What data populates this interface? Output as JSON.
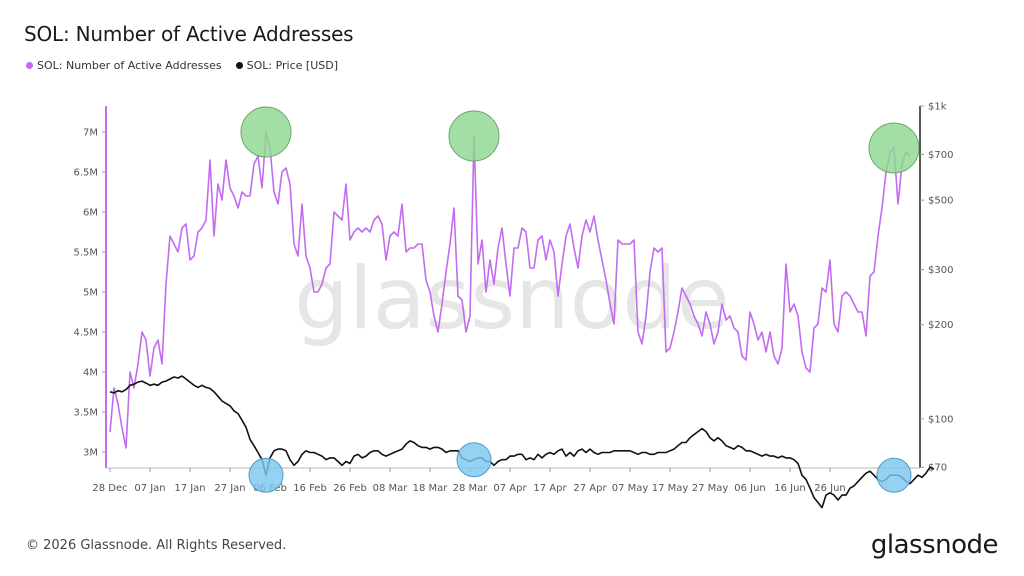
{
  "title": "SOL: Number of Active Addresses",
  "legend": [
    {
      "label": "SOL: Number of Active Addresses",
      "color": "#c26cf0"
    },
    {
      "label": "SOL: Price [USD]",
      "color": "#111111"
    }
  ],
  "watermark": "glassnode",
  "footer": "© 2026 Glassnode. All Rights Reserved.",
  "brand": "glassnode",
  "chart_data": {
    "type": "line",
    "title": "SOL: Number of Active Addresses",
    "x_start": "28 Dec",
    "x_ticks": [
      "28 Dec",
      "07 Jan",
      "17 Jan",
      "27 Jan",
      "06 Feb",
      "16 Feb",
      "26 Feb",
      "08 Mar",
      "18 Mar",
      "28 Mar",
      "07 Apr",
      "17 Apr",
      "27 Apr",
      "07 May",
      "17 May",
      "27 May",
      "06 Jun",
      "16 Jun",
      "26 Jun"
    ],
    "y_left": {
      "ticks": [
        "3M",
        "3.5M",
        "4M",
        "4.5M",
        "5M",
        "5.5M",
        "6M",
        "6.5M",
        "7M"
      ],
      "tick_values": [
        3,
        3.5,
        4,
        4.5,
        5,
        5.5,
        6,
        6.5,
        7
      ],
      "range": [
        2.92,
        7.45
      ],
      "unit": "M"
    },
    "y_right": {
      "scale": "log",
      "ticks": [
        "$70",
        "$100",
        "$200",
        "$300",
        "$500",
        "$700",
        "$1k"
      ],
      "tick_values": [
        70,
        100,
        200,
        300,
        500,
        700,
        1000
      ],
      "range": [
        55,
        1000
      ]
    },
    "grid": false,
    "legend_position": "top-left",
    "series": [
      {
        "name": "SOL: Number of Active Addresses",
        "color": "#c26cf0",
        "axis": "left",
        "values": [
          3.25,
          3.8,
          3.6,
          3.3,
          3.05,
          4.0,
          3.8,
          4.1,
          4.5,
          4.4,
          3.95,
          4.3,
          4.4,
          4.1,
          5.1,
          5.7,
          5.6,
          5.5,
          5.8,
          5.85,
          5.4,
          5.45,
          5.75,
          5.8,
          5.9,
          6.65,
          5.7,
          6.35,
          6.15,
          6.65,
          6.3,
          6.2,
          6.05,
          6.25,
          6.2,
          6.2,
          6.6,
          6.7,
          6.3,
          7.0,
          6.8,
          6.25,
          6.1,
          6.5,
          6.55,
          6.35,
          5.6,
          5.45,
          6.1,
          5.45,
          5.3,
          5.0,
          5.0,
          5.1,
          5.3,
          5.35,
          6.0,
          5.95,
          5.9,
          6.35,
          5.65,
          5.75,
          5.8,
          5.75,
          5.8,
          5.75,
          5.9,
          5.95,
          5.85,
          5.4,
          5.7,
          5.75,
          5.7,
          6.1,
          5.5,
          5.55,
          5.55,
          5.6,
          5.6,
          5.15,
          5.0,
          4.7,
          4.5,
          4.85,
          5.25,
          5.6,
          6.05,
          4.95,
          4.9,
          4.5,
          4.7,
          6.95,
          5.35,
          5.65,
          5.0,
          5.4,
          5.1,
          5.55,
          5.8,
          5.35,
          4.95,
          5.55,
          5.55,
          5.8,
          5.75,
          5.3,
          5.3,
          5.65,
          5.7,
          5.4,
          5.65,
          5.5,
          4.95,
          5.35,
          5.7,
          5.85,
          5.55,
          5.3,
          5.7,
          5.9,
          5.75,
          5.95,
          5.65,
          5.4,
          5.15,
          4.85,
          4.6,
          5.65,
          5.6,
          5.6,
          5.6,
          5.65,
          4.5,
          4.35,
          4.7,
          5.25,
          5.55,
          5.5,
          5.55,
          4.25,
          4.3,
          4.5,
          4.75,
          5.05,
          4.95,
          4.85,
          4.7,
          4.6,
          4.45,
          4.75,
          4.6,
          4.35,
          4.5,
          4.85,
          4.65,
          4.7,
          4.55,
          4.5,
          4.2,
          4.15,
          4.75,
          4.6,
          4.4,
          4.5,
          4.25,
          4.5,
          4.2,
          4.1,
          4.3,
          5.35,
          4.75,
          4.85,
          4.7,
          4.25,
          4.05,
          4.0,
          4.55,
          4.6,
          5.05,
          5.0,
          5.4,
          4.6,
          4.5,
          4.95,
          5.0,
          4.95,
          4.85,
          4.75,
          4.75,
          4.45,
          5.2,
          5.25,
          5.7,
          6.05,
          6.5,
          6.75,
          6.8,
          6.1,
          6.6,
          6.75,
          6.7
        ]
      },
      {
        "name": "SOL: Price [USD]",
        "color": "#111111",
        "axis": "right",
        "values": [
          122,
          121,
          123,
          122,
          124,
          128,
          129,
          131,
          132,
          130,
          128,
          129,
          128,
          131,
          132,
          134,
          136,
          135,
          137,
          134,
          131,
          128,
          126,
          128,
          126,
          125,
          122,
          118,
          114,
          112,
          110,
          106,
          104,
          99,
          94,
          86,
          82,
          78,
          74,
          66,
          75,
          79,
          80,
          80,
          79,
          74,
          71,
          73,
          77,
          79,
          78,
          78,
          77,
          76,
          74,
          75,
          75,
          73,
          71,
          73,
          72,
          76,
          77,
          75,
          76,
          78,
          79,
          79,
          77,
          76,
          77,
          78,
          79,
          80,
          83,
          85,
          84,
          82,
          81,
          81,
          80,
          81,
          81,
          80,
          78,
          79,
          79,
          79,
          75,
          74,
          73,
          74,
          75,
          75,
          73,
          73,
          71,
          73,
          74,
          74,
          76,
          76,
          77,
          77,
          74,
          75,
          74,
          77,
          75,
          77,
          78,
          77,
          79,
          80,
          76,
          78,
          76,
          79,
          80,
          78,
          80,
          78,
          77,
          78,
          78,
          78,
          79,
          79,
          79,
          79,
          79,
          78,
          77,
          78,
          78,
          77,
          77,
          78,
          78,
          78,
          79,
          80,
          82,
          84,
          84,
          87,
          89,
          91,
          93,
          91,
          87,
          85,
          87,
          85,
          82,
          81,
          80,
          82,
          81,
          79,
          79,
          78,
          77,
          76,
          77,
          76,
          76,
          75,
          76,
          75,
          75,
          74,
          72,
          66,
          64,
          60,
          56,
          54,
          52,
          57,
          58,
          57,
          55,
          57,
          57,
          60,
          61,
          63,
          65,
          67,
          68,
          66,
          64,
          63,
          64,
          66,
          66,
          66,
          65,
          63,
          62,
          64,
          66,
          65,
          67,
          70,
          69
        ]
      }
    ],
    "highlight_markers": [
      {
        "series": "SOL: Number of Active Addresses",
        "index": 39,
        "color": "#8fd890"
      },
      {
        "series": "SOL: Number of Active Addresses",
        "index": 91,
        "color": "#8fd890"
      },
      {
        "series": "SOL: Number of Active Addresses",
        "index": 196,
        "color": "#8fd890"
      },
      {
        "series": "SOL: Price [USD]",
        "index": 39,
        "color": "#7cc7ef"
      },
      {
        "series": "SOL: Price [USD]",
        "index": 91,
        "color": "#7cc7ef"
      },
      {
        "series": "SOL: Price [USD]",
        "index": 196,
        "color": "#7cc7ef"
      }
    ]
  }
}
